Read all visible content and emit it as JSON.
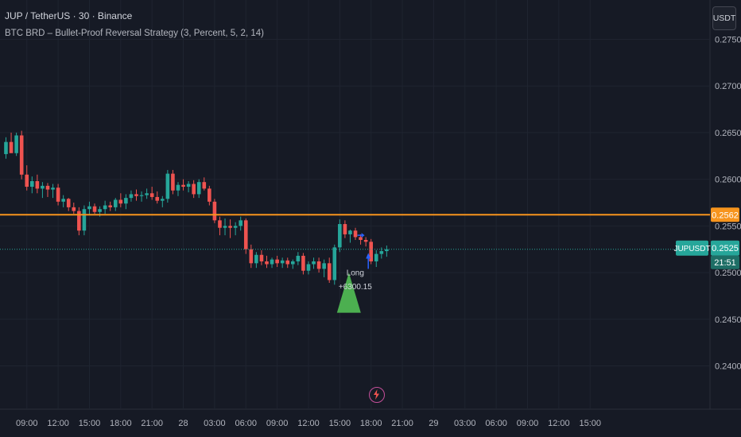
{
  "header": {
    "symbol_title": "JUP / TetherUS · 30 · Binance",
    "study_title": "BTC BRD – Bullet-Proof Reversal Strategy (3, Percent, 5, 2, 14)"
  },
  "currency_button": "USDT",
  "colors": {
    "background": "#161a25",
    "grid": "#1f2430",
    "up": "#26a69a",
    "down": "#ef5350",
    "level_line": "#f7941d",
    "price_line": "#26a69a",
    "long_marker": "#4caf50",
    "arrow": "#2962ff",
    "axis_text": "#b2b5be"
  },
  "icons": {
    "lightning": "lightning-icon"
  },
  "badges": {
    "level_value": "0.2562",
    "symbol_name": "JUPUSDT",
    "last_price": "0.2525",
    "countdown": "21:51"
  },
  "trade_marker": {
    "label": "Long",
    "profit": "+6300.15"
  },
  "chart_data": {
    "type": "candlestick",
    "symbol": "JUP / TetherUS",
    "interval": "30",
    "exchange": "Binance",
    "y_axis": {
      "ticks": [
        0.275,
        0.27,
        0.265,
        0.26,
        0.255,
        0.25,
        0.245,
        0.24
      ],
      "tick_labels": [
        "0.2750",
        "0.2700",
        "0.2650",
        "0.2600",
        "0.2550",
        "0.2500",
        "0.2450",
        "0.2400"
      ],
      "range": [
        0.2354,
        0.2796
      ]
    },
    "x_axis": {
      "tick_labels": [
        "09:00",
        "12:00",
        "15:00",
        "18:00",
        "21:00",
        "28",
        "03:00",
        "06:00",
        "09:00",
        "12:00",
        "15:00",
        "18:00",
        "21:00",
        "29",
        "03:00",
        "06:00",
        "09:00",
        "12:00",
        "15:00"
      ],
      "bars_per_tick": 6,
      "first_tick_bar": 4
    },
    "horizontal_levels": [
      {
        "value": 0.2562,
        "label": "0.2562"
      }
    ],
    "last_price": 0.2525,
    "markers": [
      {
        "type": "long-entry",
        "bar": 72,
        "label": "Long",
        "text": "+6300.15"
      }
    ],
    "candles": [
      [
        0.2627,
        0.2645,
        0.2622,
        0.264
      ],
      [
        0.264,
        0.265,
        0.263,
        0.2628
      ],
      [
        0.2628,
        0.265,
        0.2625,
        0.2647
      ],
      [
        0.2647,
        0.2652,
        0.26,
        0.2605
      ],
      [
        0.2605,
        0.2615,
        0.2588,
        0.2592
      ],
      [
        0.2592,
        0.2603,
        0.2585,
        0.2598
      ],
      [
        0.2598,
        0.2605,
        0.2585,
        0.259
      ],
      [
        0.259,
        0.2597,
        0.258,
        0.2593
      ],
      [
        0.2593,
        0.2596,
        0.2581,
        0.2589
      ],
      [
        0.2589,
        0.2595,
        0.258,
        0.2591
      ],
      [
        0.2591,
        0.2595,
        0.2572,
        0.2576
      ],
      [
        0.2576,
        0.2583,
        0.257,
        0.2579
      ],
      [
        0.2579,
        0.258,
        0.2566,
        0.257
      ],
      [
        0.257,
        0.2575,
        0.2563,
        0.2566
      ],
      [
        0.2566,
        0.257,
        0.254,
        0.2545
      ],
      [
        0.2545,
        0.2572,
        0.254,
        0.2568
      ],
      [
        0.2568,
        0.2576,
        0.2562,
        0.2571
      ],
      [
        0.2571,
        0.2574,
        0.2563,
        0.2565
      ],
      [
        0.2565,
        0.2571,
        0.256,
        0.2568
      ],
      [
        0.2568,
        0.2577,
        0.2563,
        0.2572
      ],
      [
        0.2572,
        0.2576,
        0.2566,
        0.257
      ],
      [
        0.257,
        0.258,
        0.2566,
        0.2578
      ],
      [
        0.2578,
        0.2585,
        0.257,
        0.2574
      ],
      [
        0.2574,
        0.2584,
        0.2568,
        0.258
      ],
      [
        0.258,
        0.2588,
        0.2576,
        0.2584
      ],
      [
        0.2584,
        0.2589,
        0.2577,
        0.2582
      ],
      [
        0.2582,
        0.2587,
        0.2576,
        0.2583
      ],
      [
        0.2583,
        0.259,
        0.2579,
        0.2585
      ],
      [
        0.2585,
        0.2592,
        0.2578,
        0.2581
      ],
      [
        0.2581,
        0.2587,
        0.2574,
        0.2577
      ],
      [
        0.2577,
        0.2582,
        0.257,
        0.2579
      ],
      [
        0.2579,
        0.261,
        0.2575,
        0.2606
      ],
      [
        0.2606,
        0.261,
        0.2584,
        0.2588
      ],
      [
        0.2588,
        0.2597,
        0.2582,
        0.2594
      ],
      [
        0.2594,
        0.26,
        0.2588,
        0.2592
      ],
      [
        0.2592,
        0.2598,
        0.2586,
        0.2595
      ],
      [
        0.2595,
        0.2599,
        0.258,
        0.2584
      ],
      [
        0.2584,
        0.26,
        0.258,
        0.2597
      ],
      [
        0.2597,
        0.2602,
        0.2588,
        0.259
      ],
      [
        0.259,
        0.2593,
        0.2572,
        0.2576
      ],
      [
        0.2576,
        0.2579,
        0.2553,
        0.2556
      ],
      [
        0.2556,
        0.256,
        0.254,
        0.2548
      ],
      [
        0.2548,
        0.2558,
        0.254,
        0.255
      ],
      [
        0.255,
        0.2557,
        0.2537,
        0.2548
      ],
      [
        0.2548,
        0.2554,
        0.254,
        0.255
      ],
      [
        0.255,
        0.256,
        0.2545,
        0.2556
      ],
      [
        0.2556,
        0.2558,
        0.252,
        0.2525
      ],
      [
        0.2525,
        0.253,
        0.2505,
        0.251
      ],
      [
        0.251,
        0.2522,
        0.2505,
        0.2519
      ],
      [
        0.2519,
        0.2524,
        0.2508,
        0.2512
      ],
      [
        0.2512,
        0.2518,
        0.2505,
        0.2509
      ],
      [
        0.2509,
        0.2516,
        0.2505,
        0.2514
      ],
      [
        0.2514,
        0.2518,
        0.2506,
        0.251
      ],
      [
        0.251,
        0.2516,
        0.2505,
        0.2513
      ],
      [
        0.2513,
        0.2516,
        0.2505,
        0.2509
      ],
      [
        0.2509,
        0.2514,
        0.2504,
        0.2512
      ],
      [
        0.2512,
        0.2522,
        0.2508,
        0.2518
      ],
      [
        0.2518,
        0.2521,
        0.2498,
        0.2502
      ],
      [
        0.2502,
        0.2512,
        0.2498,
        0.2509
      ],
      [
        0.2509,
        0.2516,
        0.2504,
        0.2512
      ],
      [
        0.2512,
        0.2516,
        0.25,
        0.2504
      ],
      [
        0.2504,
        0.2514,
        0.2495,
        0.251
      ],
      [
        0.251,
        0.2516,
        0.2489,
        0.2492
      ],
      [
        0.2492,
        0.253,
        0.2487,
        0.2527
      ],
      [
        0.2527,
        0.2557,
        0.2522,
        0.2552
      ],
      [
        0.2552,
        0.2556,
        0.2537,
        0.2541
      ],
      [
        0.2541,
        0.2546,
        0.2532,
        0.2545
      ],
      [
        0.2545,
        0.2548,
        0.2535,
        0.2538
      ],
      [
        0.2538,
        0.2541,
        0.253,
        0.2535
      ],
      [
        0.2535,
        0.2538,
        0.2528,
        0.2533
      ],
      [
        0.2533,
        0.2536,
        0.2509,
        0.2512
      ],
      [
        0.2512,
        0.2524,
        0.2506,
        0.252
      ],
      [
        0.252,
        0.2527,
        0.2515,
        0.2523
      ],
      [
        0.2523,
        0.2529,
        0.2517,
        0.2525
      ]
    ]
  }
}
